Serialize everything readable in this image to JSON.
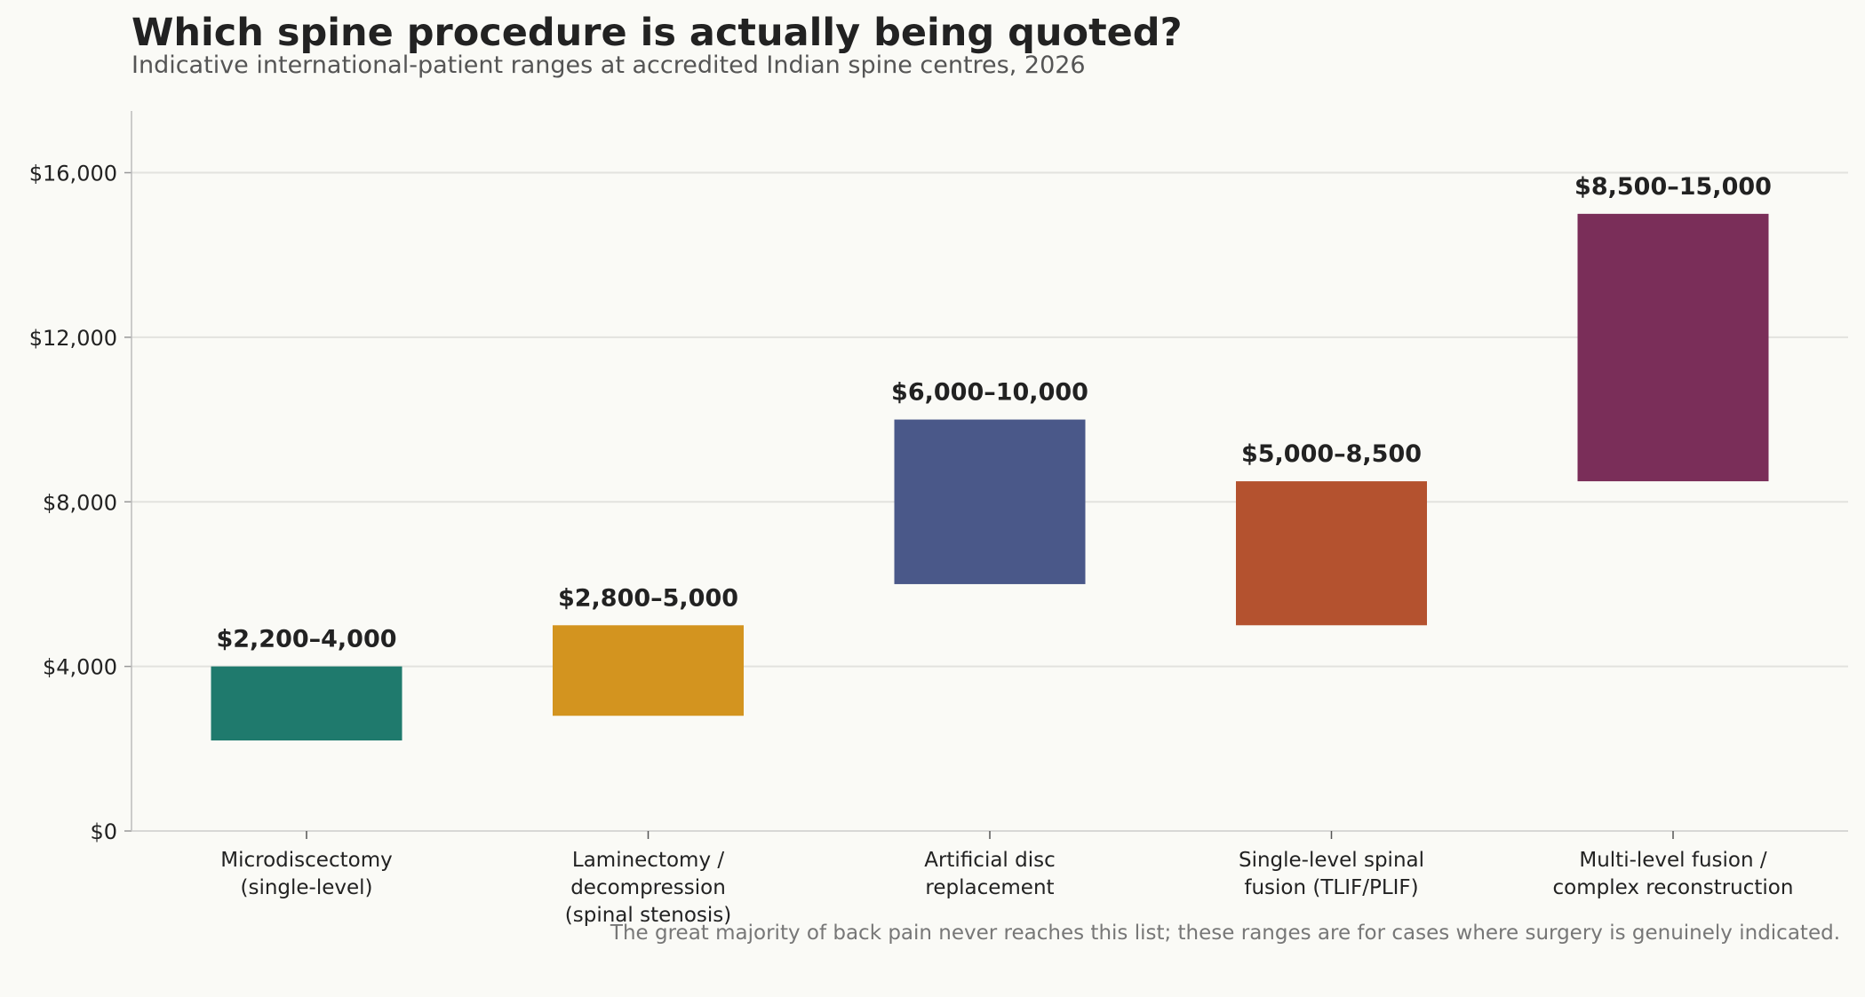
{
  "chart_data": {
    "type": "bar",
    "title": "Which spine procedure is actually being quoted?",
    "subtitle": "Indicative international-patient ranges at accredited Indian spine centres, 2026",
    "footnote": "The great majority of back pain never reaches this list; these ranges are for cases where surgery is genuinely indicated.",
    "categories": [
      [
        "Microdiscectomy",
        "(single-level)"
      ],
      [
        "Laminectomy /",
        "decompression",
        "(spinal stenosis)"
      ],
      [
        "Artificial disc",
        "replacement"
      ],
      [
        "Single-level spinal",
        "fusion (TLIF/PLIF)"
      ],
      [
        "Multi-level fusion /",
        "complex reconstruction"
      ]
    ],
    "ranges": [
      {
        "low": 2200,
        "high": 4000,
        "label": "$2,200–4,000",
        "color": "#1f7a6d"
      },
      {
        "low": 2800,
        "high": 5000,
        "label": "$2,800–5,000",
        "color": "#d3941f"
      },
      {
        "low": 6000,
        "high": 10000,
        "label": "$6,000–10,000",
        "color": "#4a5889"
      },
      {
        "low": 5000,
        "high": 8500,
        "label": "$5,000–8,500",
        "color": "#b4522f"
      },
      {
        "low": 8500,
        "high": 15000,
        "label": "$8,500–15,000",
        "color": "#7a2e59"
      }
    ],
    "yticks": [
      0,
      4000,
      8000,
      12000,
      16000
    ],
    "ytick_labels": [
      "$0",
      "$4,000",
      "$8,000",
      "$12,000",
      "$16,000"
    ],
    "ylim": [
      0,
      17500
    ],
    "grid": "horizontal",
    "legend": "none"
  }
}
